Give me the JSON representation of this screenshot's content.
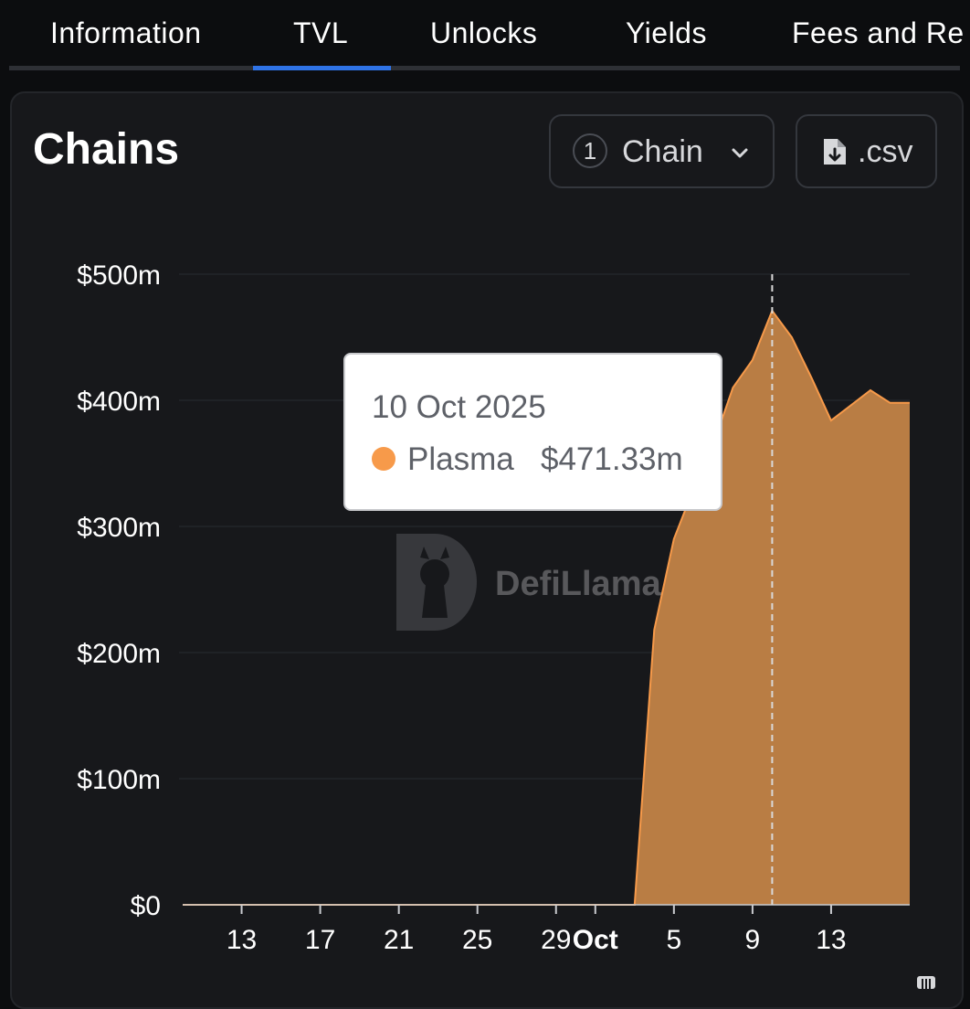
{
  "tabs": [
    {
      "label": "Information",
      "active": false
    },
    {
      "label": "TVL",
      "active": true
    },
    {
      "label": "Unlocks",
      "active": false
    },
    {
      "label": "Yields",
      "active": false
    },
    {
      "label": "Fees and Re",
      "active": false
    }
  ],
  "card": {
    "title": "Chains",
    "chain_selector": {
      "count": "1",
      "label": "Chain"
    },
    "csv_button": {
      "label": ".csv"
    }
  },
  "tooltip": {
    "date": "10 Oct 2025",
    "series": "Plasma",
    "value": "$471.33m"
  },
  "watermark": {
    "text": "DefiLlama"
  },
  "colors": {
    "area_fill": "#b97d44",
    "line": "#f79a4a",
    "accent_tab": "#2f73e6"
  },
  "icons": [
    "chevron-down-icon",
    "file-download-icon",
    "llama-logo",
    "scroll-handle-icon"
  ],
  "chart_data": {
    "type": "area",
    "x_unit": "date (2025)",
    "x_ticks": [
      "13",
      "17",
      "21",
      "25",
      "29",
      "Oct",
      "5",
      "9",
      "13"
    ],
    "x_tick_dates": [
      "2025-09-13",
      "2025-09-17",
      "2025-09-21",
      "2025-09-25",
      "2025-09-29",
      "2025-10-01",
      "2025-10-05",
      "2025-10-09",
      "2025-10-13"
    ],
    "y_ticks": [
      "$0",
      "$100m",
      "$200m",
      "$300m",
      "$400m",
      "$500m"
    ],
    "ylim": [
      0,
      500
    ],
    "grid": true,
    "hover_x": "2025-10-10",
    "series": [
      {
        "name": "Plasma",
        "points": [
          [
            "2025-09-10",
            0
          ],
          [
            "2025-09-14",
            0
          ],
          [
            "2025-09-18",
            0
          ],
          [
            "2025-09-22",
            0
          ],
          [
            "2025-09-26",
            0
          ],
          [
            "2025-09-30",
            0
          ],
          [
            "2025-10-02",
            0
          ],
          [
            "2025-10-03",
            0
          ],
          [
            "2025-10-04",
            218
          ],
          [
            "2025-10-05",
            290
          ],
          [
            "2025-10-06",
            330
          ],
          [
            "2025-10-07",
            365
          ],
          [
            "2025-10-08",
            410
          ],
          [
            "2025-10-09",
            432
          ],
          [
            "2025-10-10",
            471
          ],
          [
            "2025-10-11",
            450
          ],
          [
            "2025-10-12",
            418
          ],
          [
            "2025-10-13",
            384
          ],
          [
            "2025-10-14",
            396
          ],
          [
            "2025-10-15",
            408
          ],
          [
            "2025-10-16",
            398
          ],
          [
            "2025-10-17",
            398
          ]
        ]
      }
    ]
  }
}
